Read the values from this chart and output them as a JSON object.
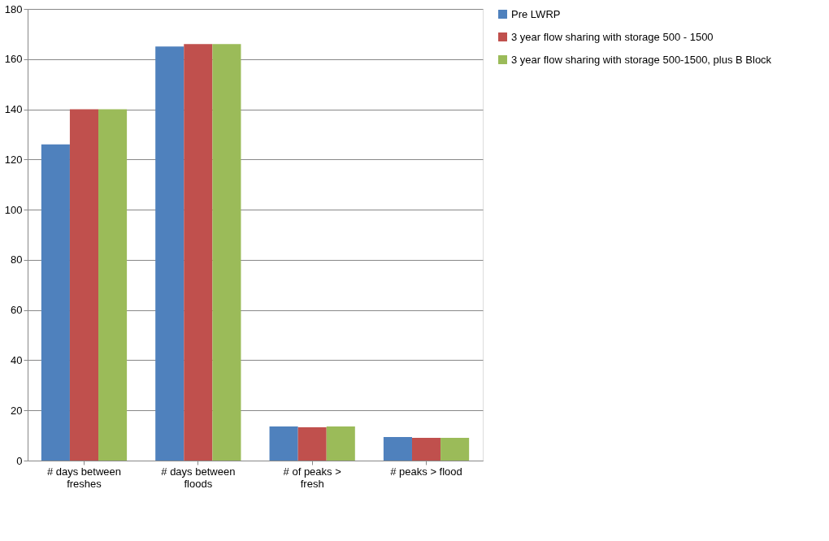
{
  "chart_data": {
    "type": "bar",
    "categories": [
      "# days between freshes",
      "# days between floods",
      "# of peaks > fresh",
      "# peaks > flood"
    ],
    "series": [
      {
        "name": "Pre LWRP",
        "color": "#4f81bd",
        "values": [
          126,
          165,
          13.6,
          9.4
        ]
      },
      {
        "name": "3 year flow sharing with storage 500 - 1500",
        "color": "#c0504d",
        "values": [
          140,
          166,
          13.3,
          9.1
        ]
      },
      {
        "name": "3 year flow sharing with storage 500-1500, plus B Block",
        "color": "#9bbb59",
        "values": [
          140,
          166,
          13.6,
          9.1
        ]
      }
    ],
    "ylim": [
      0,
      180
    ],
    "yticks": [
      0,
      20,
      40,
      60,
      80,
      100,
      120,
      140,
      160,
      180
    ],
    "grid": "y",
    "legend": "right"
  }
}
